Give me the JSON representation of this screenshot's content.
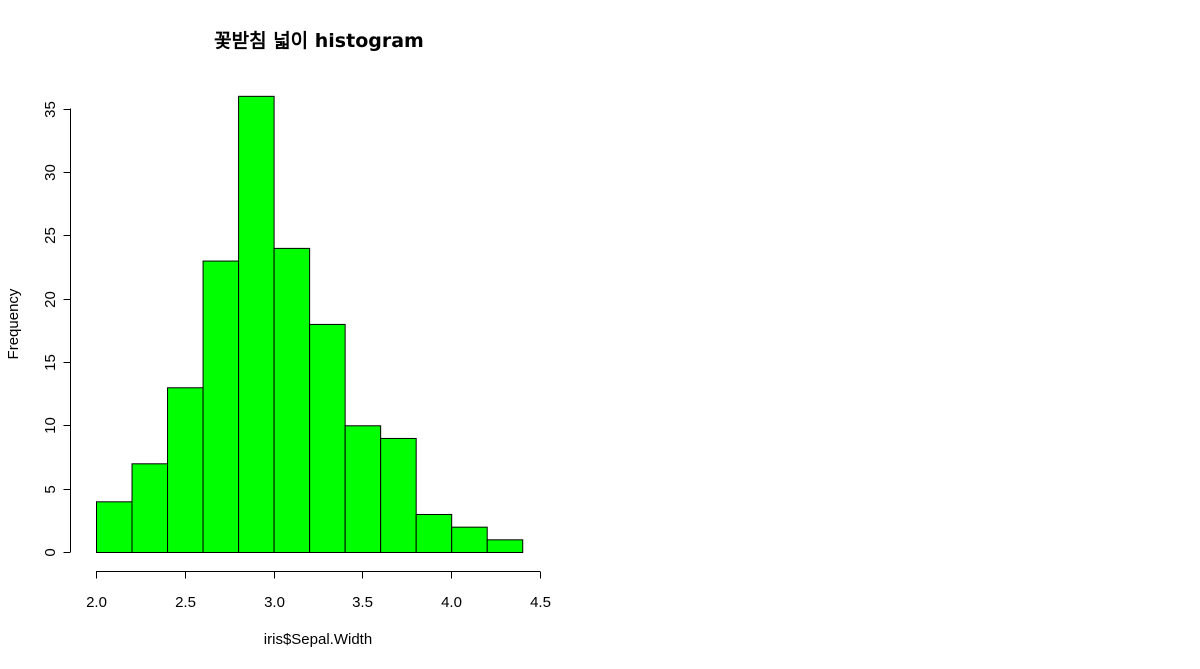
{
  "chart_data": {
    "type": "bar",
    "title": "꽃받침 넓이 histogram",
    "xlabel": "iris$Sepal.Width",
    "ylabel": "Frequency",
    "bins": [
      {
        "start": 2.0,
        "end": 2.2,
        "count": 4
      },
      {
        "start": 2.2,
        "end": 2.4,
        "count": 7
      },
      {
        "start": 2.4,
        "end": 2.6,
        "count": 13
      },
      {
        "start": 2.6,
        "end": 2.8,
        "count": 23
      },
      {
        "start": 2.8,
        "end": 3.0,
        "count": 36
      },
      {
        "start": 3.0,
        "end": 3.2,
        "count": 24
      },
      {
        "start": 3.2,
        "end": 3.4,
        "count": 18
      },
      {
        "start": 3.4,
        "end": 3.6,
        "count": 10
      },
      {
        "start": 3.6,
        "end": 3.8,
        "count": 9
      },
      {
        "start": 3.8,
        "end": 4.0,
        "count": 3
      },
      {
        "start": 4.0,
        "end": 4.2,
        "count": 2
      },
      {
        "start": 4.2,
        "end": 4.4,
        "count": 1
      }
    ],
    "x_ticks": [
      "2.0",
      "2.5",
      "3.0",
      "3.5",
      "4.0",
      "4.5"
    ],
    "y_ticks": [
      "0",
      "5",
      "10",
      "15",
      "20",
      "25",
      "30",
      "35"
    ],
    "xlim": [
      2.0,
      4.5
    ],
    "ylim": [
      0,
      35
    ],
    "bar_color": "#00ff00",
    "bar_border_color": "#000000",
    "grid": false,
    "legend": "none"
  }
}
